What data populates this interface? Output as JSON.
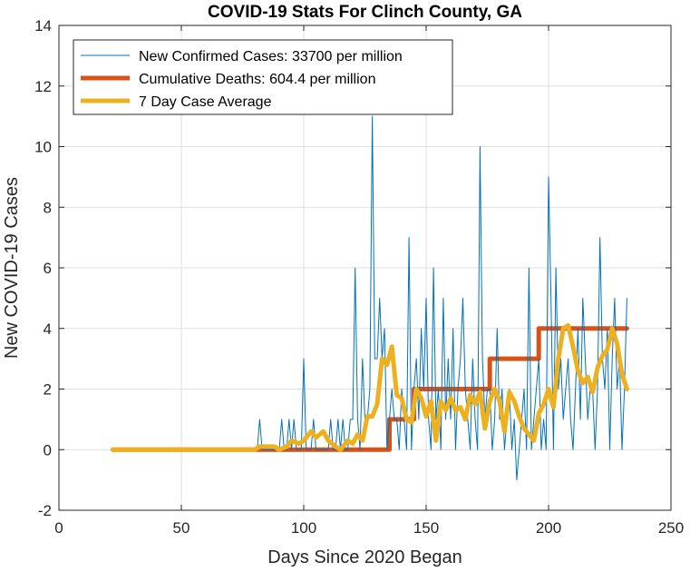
{
  "chart_data": {
    "type": "line",
    "title": "COVID-19 Stats For Clinch County, GA",
    "xlabel": "Days Since 2020 Began",
    "ylabel": "New COVID-19 Cases",
    "xlim": [
      0,
      250
    ],
    "ylim": [
      -2,
      14
    ],
    "xticks": [
      0,
      50,
      100,
      150,
      200,
      250
    ],
    "yticks": [
      -2,
      0,
      2,
      4,
      6,
      8,
      10,
      12,
      14
    ],
    "grid": true,
    "legend_position": "top-left",
    "series": [
      {
        "name": "New Confirmed Cases: 33700 per million",
        "color": "#0072BD",
        "style": "thin",
        "x": [
          22,
          23,
          24,
          25,
          26,
          27,
          28,
          29,
          30,
          31,
          32,
          33,
          34,
          35,
          36,
          37,
          38,
          39,
          40,
          41,
          42,
          43,
          44,
          45,
          46,
          47,
          48,
          49,
          50,
          51,
          52,
          53,
          54,
          55,
          56,
          57,
          58,
          59,
          60,
          61,
          62,
          63,
          64,
          65,
          66,
          67,
          68,
          69,
          70,
          71,
          72,
          73,
          74,
          75,
          76,
          77,
          78,
          79,
          80,
          81,
          82,
          83,
          84,
          85,
          86,
          87,
          88,
          89,
          90,
          91,
          92,
          93,
          94,
          95,
          96,
          97,
          98,
          99,
          100,
          101,
          102,
          103,
          104,
          105,
          106,
          107,
          108,
          109,
          110,
          111,
          112,
          113,
          114,
          115,
          116,
          117,
          118,
          119,
          120,
          121,
          122,
          123,
          124,
          125,
          126,
          127,
          128,
          129,
          130,
          131,
          132,
          133,
          134,
          135,
          136,
          137,
          138,
          139,
          140,
          141,
          142,
          143,
          144,
          145,
          146,
          147,
          148,
          149,
          150,
          151,
          152,
          153,
          154,
          155,
          156,
          157,
          158,
          159,
          160,
          161,
          162,
          163,
          164,
          165,
          166,
          167,
          168,
          169,
          170,
          171,
          172,
          173,
          174,
          175,
          176,
          177,
          178,
          179,
          180,
          181,
          182,
          183,
          184,
          185,
          186,
          187,
          188,
          189,
          190,
          191,
          192,
          193,
          194,
          195,
          196,
          197,
          198,
          199,
          200,
          201,
          202,
          203,
          204,
          205,
          206,
          207,
          208,
          209,
          210,
          211,
          212,
          213,
          214,
          215,
          216,
          217,
          218,
          219,
          220,
          221,
          222,
          223,
          224,
          225,
          226,
          227,
          228,
          229,
          230,
          231,
          232
        ],
        "values": [
          0,
          0,
          0,
          0,
          0,
          0,
          0,
          0,
          0,
          0,
          0,
          0,
          0,
          0,
          0,
          0,
          0,
          0,
          0,
          0,
          0,
          0,
          0,
          0,
          0,
          0,
          0,
          0,
          0,
          0,
          0,
          0,
          0,
          0,
          0,
          0,
          0,
          0,
          0,
          0,
          0,
          0,
          0,
          0,
          0,
          0,
          0,
          0,
          0,
          0,
          0,
          0,
          0,
          0,
          0,
          0,
          0,
          0,
          0,
          0,
          1,
          0,
          0,
          0,
          0,
          0,
          0,
          0,
          0,
          1,
          0,
          0,
          1,
          0,
          1,
          0,
          0,
          0,
          3,
          0,
          0,
          0,
          1,
          0,
          0,
          0,
          0,
          0,
          0,
          1,
          0,
          0,
          1,
          0,
          1,
          0,
          0,
          1,
          1,
          6,
          1,
          0,
          3,
          1,
          1,
          2,
          11,
          3,
          3,
          5,
          3,
          4,
          0,
          1,
          2,
          1,
          1,
          0,
          2,
          1,
          0,
          7,
          0,
          2,
          3,
          1,
          4,
          2,
          5,
          1,
          0,
          6,
          1,
          2,
          0,
          5,
          1,
          3,
          1,
          4,
          0,
          2,
          3,
          5,
          2,
          1,
          0,
          3,
          1,
          0,
          10,
          3,
          1,
          2,
          2,
          0,
          1,
          4,
          1,
          2,
          0,
          1,
          2,
          0,
          1,
          -1,
          0,
          1,
          2,
          0,
          6,
          0,
          1,
          2,
          3,
          0,
          1,
          0,
          9,
          5,
          0,
          6,
          2,
          3,
          1,
          2,
          3,
          1,
          0,
          2,
          4,
          1,
          5,
          3,
          1,
          2,
          2,
          0,
          2,
          7,
          3,
          2,
          4,
          0,
          3,
          5,
          2,
          3,
          0,
          2,
          5
        ]
      },
      {
        "name": "Cumulative Deaths: 604.4 per million",
        "color": "#D95319",
        "style": "thick",
        "x": [
          22,
          82,
          82,
          135,
          135,
          145,
          145,
          176,
          176,
          196,
          196,
          232
        ],
        "values": [
          0,
          0,
          0,
          0,
          1,
          1,
          2,
          2,
          3,
          3,
          4,
          4
        ]
      },
      {
        "name": "7 Day Case Average",
        "color": "#EDB120",
        "style": "thick",
        "x": [
          22,
          80,
          82,
          85,
          88,
          90,
          93,
          95,
          98,
          100,
          103,
          105,
          108,
          110,
          113,
          115,
          118,
          120,
          122,
          124,
          126,
          128,
          130,
          132,
          134,
          136,
          138,
          140,
          142,
          144,
          146,
          148,
          150,
          152,
          154,
          156,
          158,
          160,
          162,
          164,
          166,
          168,
          170,
          172,
          174,
          176,
          178,
          180,
          182,
          184,
          186,
          188,
          190,
          192,
          194,
          196,
          198,
          200,
          202,
          204,
          206,
          208,
          210,
          212,
          214,
          216,
          218,
          220,
          222,
          224,
          226,
          228,
          230,
          232
        ],
        "values": [
          0,
          0,
          0.1,
          0.1,
          0.1,
          0,
          0.1,
          0.3,
          0.2,
          0.3,
          0.6,
          0.4,
          0.6,
          0.3,
          0.1,
          0,
          0.3,
          0.2,
          0.5,
          0.3,
          1.1,
          1.1,
          1.5,
          3,
          2.8,
          3.4,
          1.8,
          1.7,
          1,
          0.9,
          2,
          1.7,
          1.1,
          1.6,
          0.3,
          1.6,
          1.3,
          1.7,
          1.3,
          1.4,
          1,
          1.8,
          1.5,
          1.9,
          0.7,
          1.6,
          2,
          1.6,
          0.6,
          1.9,
          1.6,
          1.1,
          0.7,
          0.5,
          0.3,
          1.2,
          1.5,
          2,
          1.4,
          3,
          4,
          4.1,
          3.4,
          2.6,
          2.2,
          2.4,
          1.9,
          2.7,
          3.1,
          3.3,
          4,
          3.5,
          2.5,
          2
        ]
      }
    ]
  }
}
